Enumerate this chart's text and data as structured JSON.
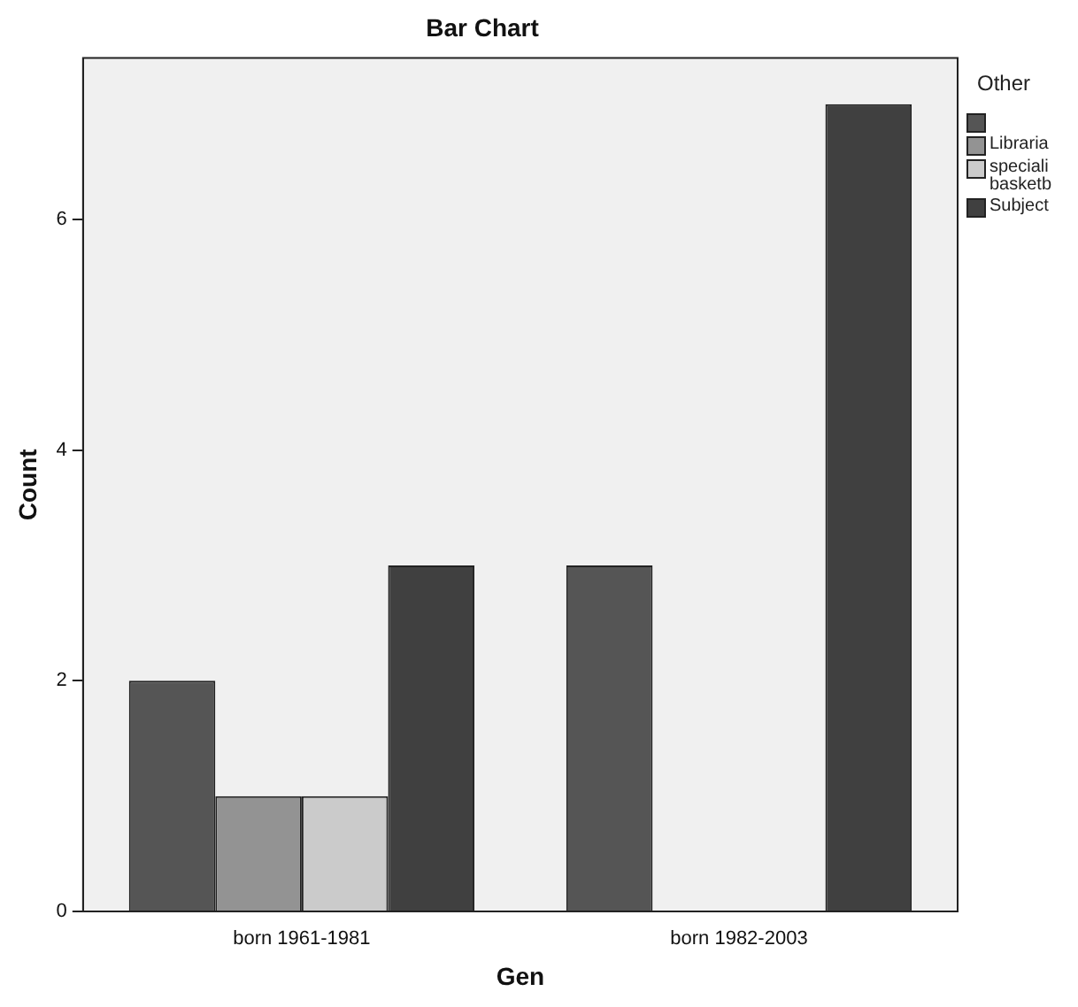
{
  "chart_data": {
    "type": "bar",
    "title": "Bar Chart",
    "xlabel": "Gen",
    "ylabel": "Count",
    "legend_title": "Other",
    "categories": [
      "born 1961-1981",
      "born 1982-2003"
    ],
    "series": [
      {
        "color": "#555555",
        "values": [
          2,
          3
        ]
      },
      {
        "name": "Libraria",
        "color": "#939393",
        "values": [
          1,
          null
        ]
      },
      {
        "name": "speciali basketb",
        "color": "#cbcbcb",
        "values": [
          1,
          null
        ]
      },
      {
        "name": "Subject",
        "color": "#404040",
        "values": [
          3,
          7
        ]
      }
    ],
    "ylim": [
      0,
      7.4
    ],
    "yticks": [
      0,
      2,
      4,
      6
    ],
    "grid": false,
    "legend": "right"
  }
}
